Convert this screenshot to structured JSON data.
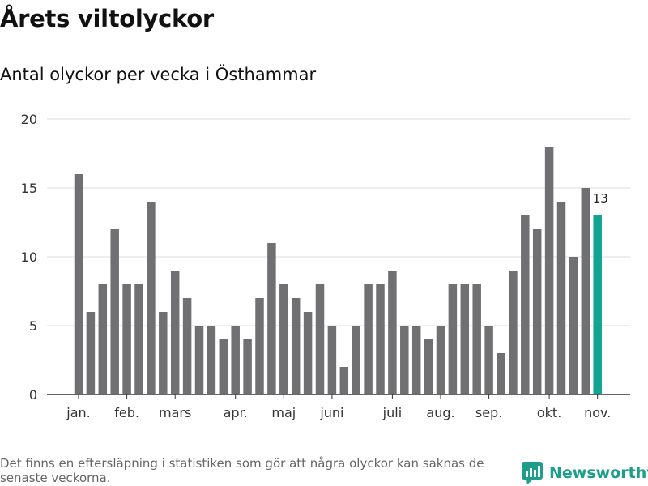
{
  "title": "Årets viltolyckor",
  "subtitle": "Antal olyckor per vecka i Östhammar",
  "footnote": "Det finns en eftersläpning i statistiken som gör att några olyckor kan saknas de senaste veckorna.",
  "brand": "Newsworthy",
  "colors": {
    "bar": "#707073",
    "highlight": "#13a393",
    "grid": "#dcdcdc",
    "brand": "#1d9e8a"
  },
  "chart_data": {
    "type": "bar",
    "title": "Antal olyckor per vecka i Östhammar",
    "xlabel": "",
    "ylabel": "",
    "ylim": [
      0,
      20
    ],
    "yticks": [
      0,
      5,
      10,
      15,
      20
    ],
    "weeks": [
      1,
      2,
      3,
      4,
      5,
      6,
      7,
      8,
      9,
      10,
      11,
      12,
      13,
      14,
      15,
      16,
      17,
      18,
      19,
      20,
      21,
      22,
      23,
      24,
      25,
      26,
      27,
      28,
      29,
      30,
      31,
      32,
      33,
      34,
      35,
      36,
      37,
      38,
      39,
      40,
      41,
      42,
      43,
      44
    ],
    "values": [
      16,
      6,
      8,
      12,
      8,
      8,
      14,
      6,
      9,
      7,
      5,
      5,
      4,
      5,
      4,
      7,
      11,
      8,
      7,
      6,
      8,
      5,
      2,
      5,
      8,
      8,
      9,
      5,
      5,
      4,
      5,
      8,
      8,
      8,
      5,
      3,
      9,
      13,
      12,
      18,
      14,
      10,
      15,
      13
    ],
    "month_labels": [
      {
        "label": "jan.",
        "week": 1
      },
      {
        "label": "feb.",
        "week": 5
      },
      {
        "label": "mars",
        "week": 9
      },
      {
        "label": "apr.",
        "week": 14
      },
      {
        "label": "maj",
        "week": 18
      },
      {
        "label": "juni",
        "week": 22
      },
      {
        "label": "juli",
        "week": 27
      },
      {
        "label": "aug.",
        "week": 31
      },
      {
        "label": "sep.",
        "week": 35
      },
      {
        "label": "okt.",
        "week": 40
      },
      {
        "label": "nov.",
        "week": 44
      }
    ],
    "highlight_week": 44,
    "highlight_label": "13",
    "grid": true,
    "legend": "none"
  }
}
